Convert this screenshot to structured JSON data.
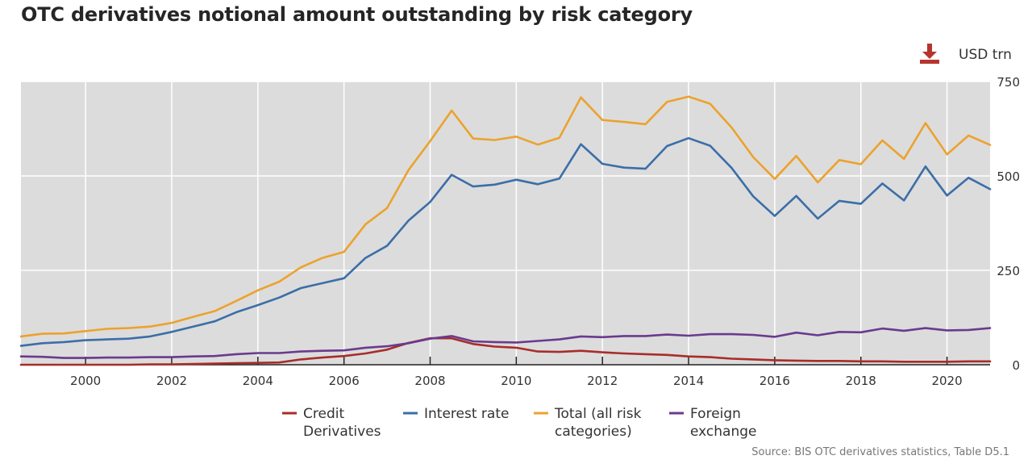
{
  "title": "OTC derivatives notional amount outstanding by risk category",
  "unit": "USD trn",
  "download_icon": "download-icon",
  "source": "Source: BIS OTC derivatives statistics, Table D5.1",
  "colors": {
    "plot_bg": "#dcdcdc",
    "grid": "#ffffff",
    "credit": "#a72d2a",
    "interest": "#3b6ea8",
    "total": "#eca22e",
    "fx": "#6a3a8f",
    "download": "#b5352e"
  },
  "chart_data": {
    "type": "line",
    "title": "OTC derivatives notional amount outstanding by risk category",
    "xlabel": "",
    "ylabel": "",
    "xlim": [
      1998.5,
      2021.0
    ],
    "ylim": [
      0,
      750
    ],
    "x_ticks": [
      2000,
      2002,
      2004,
      2006,
      2008,
      2010,
      2012,
      2014,
      2016,
      2018,
      2020
    ],
    "y_ticks": [
      0,
      250,
      500,
      750
    ],
    "y_axis_side": "right",
    "grid": true,
    "legend_position": "bottom",
    "x": [
      1998.5,
      1999.0,
      1999.5,
      2000.0,
      2000.5,
      2001.0,
      2001.5,
      2002.0,
      2002.5,
      2003.0,
      2003.5,
      2004.0,
      2004.5,
      2005.0,
      2005.5,
      2006.0,
      2006.5,
      2007.0,
      2007.5,
      2008.0,
      2008.5,
      2009.0,
      2009.5,
      2010.0,
      2010.5,
      2011.0,
      2011.5,
      2012.0,
      2012.5,
      2013.0,
      2013.5,
      2014.0,
      2014.5,
      2015.0,
      2015.5,
      2016.0,
      2016.5,
      2017.0,
      2017.5,
      2018.0,
      2018.5,
      2019.0,
      2019.5,
      2020.0,
      2020.5,
      2021.0
    ],
    "series": [
      {
        "name": "Credit Derivatives",
        "color": "#a72d2a",
        "values": [
          0,
          0,
          0,
          0,
          0,
          0,
          1,
          1,
          2,
          3,
          4,
          5,
          6,
          14,
          19,
          23,
          30,
          40,
          58,
          70,
          70,
          55,
          48,
          45,
          35,
          34,
          37,
          33,
          30,
          28,
          26,
          22,
          20,
          16,
          14,
          12,
          11,
          10,
          10,
          9,
          9,
          8,
          8,
          8,
          9,
          9
        ]
      },
      {
        "name": "Interest rate",
        "color": "#3b6ea8",
        "values": [
          50,
          57,
          60,
          65,
          67,
          69,
          75,
          87,
          101,
          115,
          139,
          158,
          178,
          203,
          216,
          229,
          283,
          315,
          382,
          431,
          503,
          472,
          477,
          490,
          478,
          493,
          584,
          532,
          522,
          519,
          579,
          600,
          580,
          521,
          446,
          394,
          447,
          387,
          434,
          426,
          480,
          435,
          525,
          448,
          495,
          465
        ]
      },
      {
        "name": "Total (all risk categories)",
        "color": "#eca22e",
        "values": [
          75,
          82,
          83,
          89,
          95,
          97,
          101,
          111,
          127,
          142,
          169,
          197,
          220,
          258,
          283,
          299,
          372,
          415,
          516,
          592,
          673,
          599,
          595,
          604,
          583,
          601,
          708,
          648,
          643,
          637,
          696,
          710,
          691,
          628,
          550,
          492,
          553,
          483,
          542,
          531,
          594,
          545,
          640,
          557,
          607,
          582
        ]
      },
      {
        "name": "Foreign exchange",
        "color": "#6a3a8f",
        "values": [
          22,
          21,
          18,
          18,
          19,
          19,
          20,
          20,
          22,
          23,
          28,
          31,
          31,
          35,
          37,
          38,
          45,
          49,
          57,
          69,
          76,
          62,
          60,
          59,
          63,
          67,
          75,
          73,
          76,
          76,
          80,
          77,
          81,
          81,
          79,
          74,
          85,
          78,
          87,
          86,
          96,
          90,
          97,
          91,
          92,
          97
        ]
      }
    ]
  },
  "legend": [
    {
      "lines": [
        "Credit",
        "Derivatives"
      ],
      "color": "#a72d2a"
    },
    {
      "lines": [
        "Interest rate"
      ],
      "color": "#3b6ea8"
    },
    {
      "lines": [
        "Total (all risk",
        "categories)"
      ],
      "color": "#eca22e"
    },
    {
      "lines": [
        "Foreign",
        "exchange"
      ],
      "color": "#6a3a8f"
    }
  ]
}
